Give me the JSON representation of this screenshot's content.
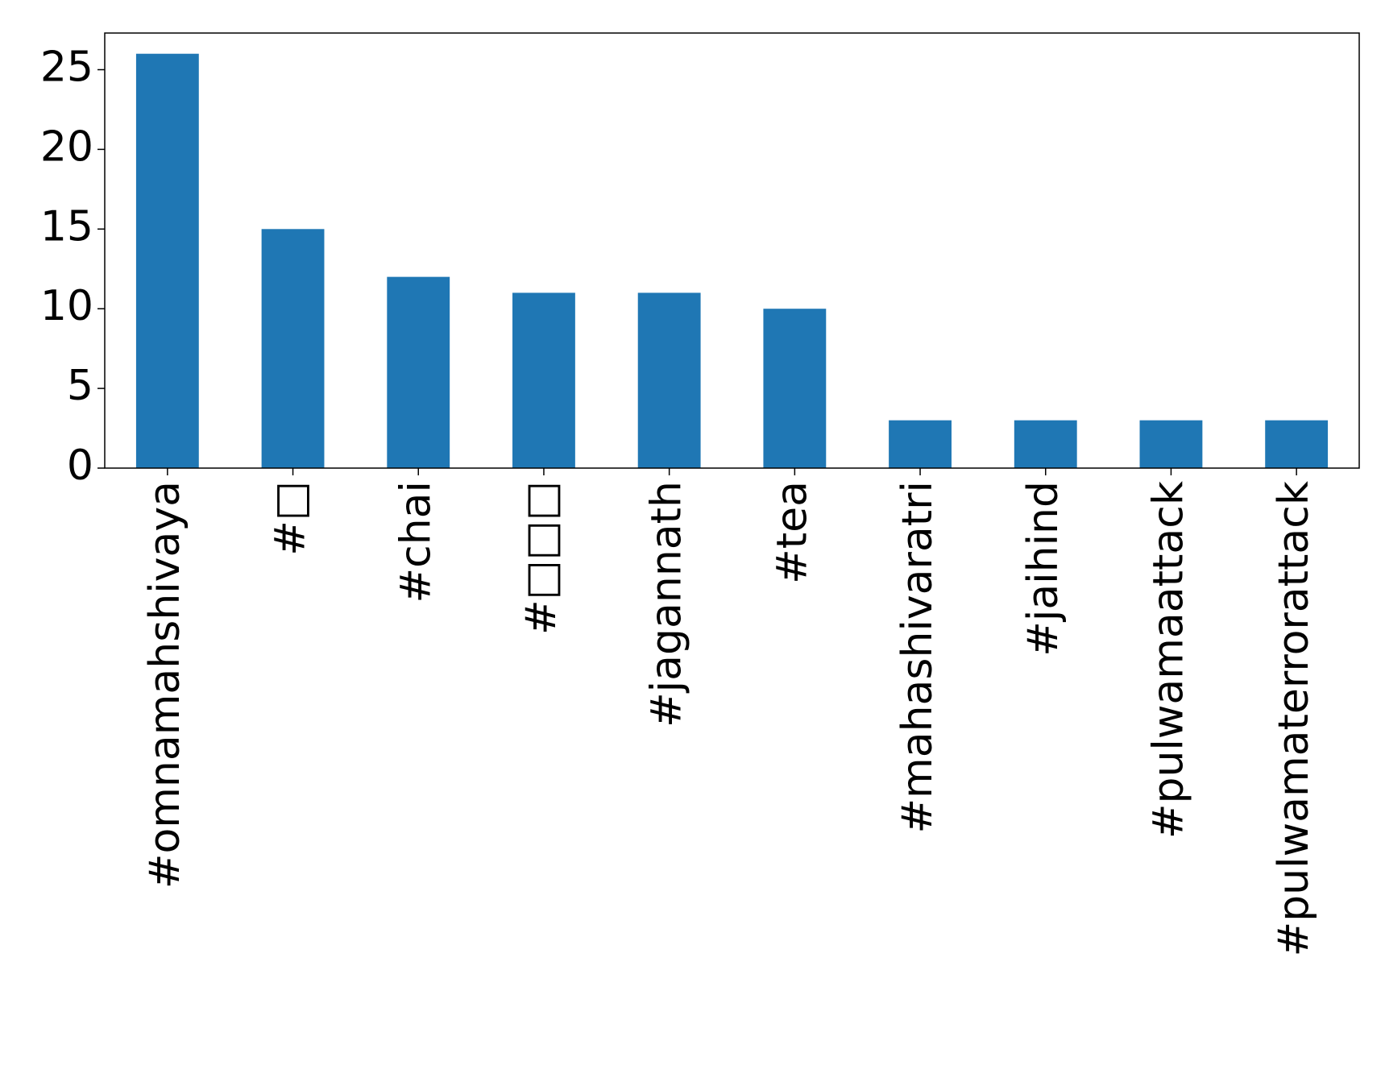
{
  "chart_data": {
    "type": "bar",
    "categories": [
      "#omnamahshivaya",
      "#□",
      "#chai",
      "#□□□",
      "#jagannath",
      "#tea",
      "#mahashivaratri",
      "#jaihind",
      "#pulwamaattack",
      "#pulwamaterrorattack"
    ],
    "values": [
      26,
      15,
      12,
      11,
      11,
      10,
      3,
      3,
      3,
      3
    ],
    "color": "#1f77b4",
    "ylim": [
      0,
      27.3
    ],
    "yticks": [
      0,
      5,
      10,
      15,
      20,
      25
    ],
    "grid": false
  }
}
